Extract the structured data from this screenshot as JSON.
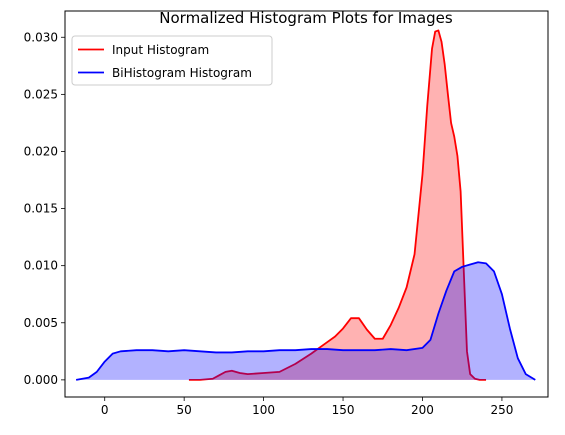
{
  "chart_data": {
    "type": "area",
    "title": "Normalized Histogram Plots for Images",
    "xlabel": "",
    "ylabel": "",
    "xlim": [
      -25,
      279
    ],
    "ylim": [
      -0.0015,
      0.0323
    ],
    "x_ticks": [
      0,
      50,
      100,
      150,
      200,
      250
    ],
    "y_ticks": [
      0.0,
      0.005,
      0.01,
      0.015,
      0.02,
      0.025,
      0.03
    ],
    "y_tick_labels": [
      "0.000",
      "0.005",
      "0.010",
      "0.015",
      "0.020",
      "0.025",
      "0.030"
    ],
    "grid": false,
    "legend_position": "top-left",
    "series": [
      {
        "name": "Input Histogram",
        "color": "#ff0000",
        "fill_color": "#ff0000",
        "x": [
          53,
          60,
          68,
          72,
          76,
          80,
          85,
          90,
          100,
          110,
          120,
          130,
          140,
          145,
          150,
          155,
          160,
          165,
          170,
          175,
          180,
          185,
          190,
          195,
          200,
          203,
          206,
          208,
          210,
          212,
          214,
          216,
          218,
          220,
          222,
          224,
          226,
          228,
          230,
          233,
          236,
          240
        ],
        "y": [
          0.0,
          0.0,
          0.0001,
          0.0004,
          0.0007,
          0.0008,
          0.0006,
          0.0005,
          0.0006,
          0.0007,
          0.0014,
          0.0023,
          0.0033,
          0.0038,
          0.0045,
          0.0054,
          0.0054,
          0.0044,
          0.0036,
          0.0036,
          0.0048,
          0.0063,
          0.0081,
          0.011,
          0.018,
          0.024,
          0.029,
          0.0305,
          0.0306,
          0.0296,
          0.0276,
          0.025,
          0.0225,
          0.0213,
          0.0196,
          0.0165,
          0.0095,
          0.0025,
          0.0005,
          0.0001,
          0.0,
          0.0
        ]
      },
      {
        "name": "BiHistogram Histogram",
        "color": "#0000ff",
        "fill_color": "#0000ff",
        "x": [
          -18,
          -10,
          -5,
          0,
          5,
          10,
          20,
          30,
          40,
          50,
          60,
          70,
          80,
          90,
          100,
          110,
          120,
          130,
          140,
          150,
          160,
          170,
          180,
          190,
          200,
          205,
          210,
          215,
          220,
          225,
          230,
          235,
          240,
          245,
          250,
          255,
          260,
          265,
          271
        ],
        "y": [
          0.0,
          0.0002,
          0.0007,
          0.0016,
          0.0023,
          0.0025,
          0.0026,
          0.0026,
          0.0025,
          0.0026,
          0.0025,
          0.0024,
          0.0024,
          0.0025,
          0.0025,
          0.0026,
          0.0026,
          0.0027,
          0.0027,
          0.0026,
          0.0026,
          0.0026,
          0.0027,
          0.0026,
          0.0028,
          0.0035,
          0.0058,
          0.0078,
          0.0095,
          0.0099,
          0.0101,
          0.0103,
          0.0102,
          0.0095,
          0.0075,
          0.0045,
          0.0019,
          0.0005,
          0.0
        ]
      }
    ]
  }
}
